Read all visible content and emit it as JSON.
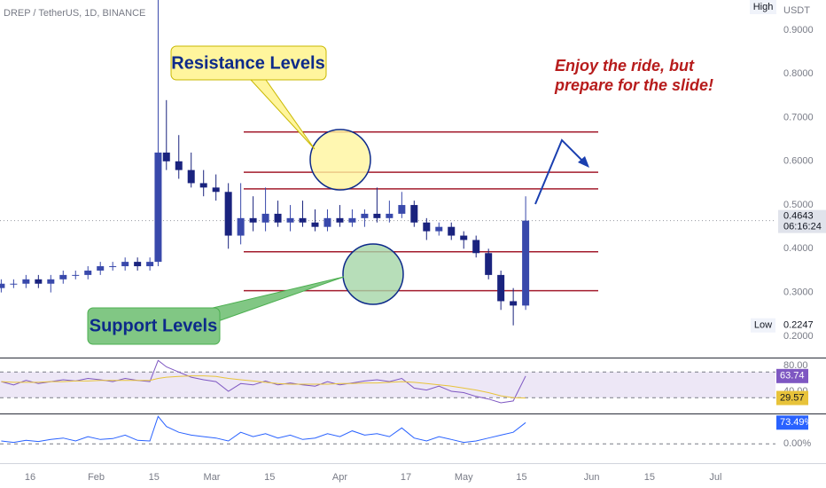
{
  "chart_data": {
    "type": "candlestick",
    "title": "DREP / TetherUS, 1D, BINANCE",
    "unit": "USDT",
    "high_label": "High",
    "low_label": "Low",
    "countdown": "06:16:24",
    "x": [
      9,
      12,
      15,
      18,
      21,
      24,
      27,
      30,
      33,
      36,
      39,
      42,
      45,
      47,
      49,
      52,
      55,
      58,
      61,
      64,
      67,
      70,
      73,
      76,
      79,
      82,
      85,
      88,
      91,
      94,
      97,
      100,
      103,
      106,
      109,
      112,
      115,
      118,
      121,
      124,
      127,
      130,
      133,
      136
    ],
    "open": [
      0.31,
      0.32,
      0.32,
      0.33,
      0.32,
      0.33,
      0.34,
      0.34,
      0.35,
      0.36,
      0.36,
      0.37,
      0.36,
      0.37,
      0.62,
      0.6,
      0.58,
      0.55,
      0.54,
      0.53,
      0.43,
      0.47,
      0.46,
      0.48,
      0.46,
      0.47,
      0.46,
      0.45,
      0.47,
      0.46,
      0.47,
      0.48,
      0.47,
      0.48,
      0.5,
      0.46,
      0.44,
      0.45,
      0.43,
      0.42,
      0.39,
      0.34,
      0.28,
      0.27
    ],
    "high": [
      0.33,
      0.33,
      0.34,
      0.34,
      0.34,
      0.35,
      0.35,
      0.36,
      0.37,
      0.37,
      0.38,
      0.38,
      0.38,
      0.97,
      0.74,
      0.66,
      0.62,
      0.58,
      0.57,
      0.55,
      0.55,
      0.52,
      0.54,
      0.51,
      0.5,
      0.51,
      0.49,
      0.49,
      0.5,
      0.49,
      0.49,
      0.54,
      0.51,
      0.53,
      0.51,
      0.47,
      0.46,
      0.46,
      0.44,
      0.43,
      0.4,
      0.35,
      0.31,
      0.52
    ],
    "low": [
      0.3,
      0.31,
      0.31,
      0.31,
      0.3,
      0.32,
      0.33,
      0.33,
      0.34,
      0.35,
      0.35,
      0.35,
      0.35,
      0.36,
      0.58,
      0.56,
      0.54,
      0.52,
      0.51,
      0.4,
      0.41,
      0.44,
      0.44,
      0.45,
      0.44,
      0.45,
      0.44,
      0.44,
      0.45,
      0.45,
      0.45,
      0.46,
      0.46,
      0.47,
      0.45,
      0.42,
      0.43,
      0.42,
      0.4,
      0.38,
      0.33,
      0.26,
      0.2247,
      0.26
    ],
    "close": [
      0.32,
      0.32,
      0.33,
      0.32,
      0.33,
      0.34,
      0.34,
      0.35,
      0.36,
      0.36,
      0.37,
      0.36,
      0.37,
      0.62,
      0.6,
      0.58,
      0.55,
      0.54,
      0.53,
      0.43,
      0.47,
      0.46,
      0.48,
      0.46,
      0.47,
      0.46,
      0.45,
      0.47,
      0.46,
      0.47,
      0.48,
      0.47,
      0.48,
      0.5,
      0.46,
      0.44,
      0.45,
      0.43,
      0.42,
      0.39,
      0.34,
      0.28,
      0.27,
      0.4643
    ],
    "up_color": "#3949ab",
    "down_color": "#1a237e",
    "xlim": [
      8.7,
      196.5
    ],
    "xticks": [
      {
        "value": 16,
        "label": "16"
      },
      {
        "value": 32,
        "label": "Feb"
      },
      {
        "value": 46,
        "label": "15"
      },
      {
        "value": 60,
        "label": "Mar"
      },
      {
        "value": 74,
        "label": "15"
      },
      {
        "value": 91,
        "label": "Apr"
      },
      {
        "value": 107,
        "label": "17"
      },
      {
        "value": 121,
        "label": "May"
      },
      {
        "value": 135,
        "label": "15"
      },
      {
        "value": 152,
        "label": "Jun"
      },
      {
        "value": 166,
        "label": "15"
      },
      {
        "value": 182,
        "label": "Jul"
      }
    ],
    "ylim": [
      0.151,
      0.969
    ],
    "yticks": [
      {
        "value": 0.2,
        "label": "0.2000"
      },
      {
        "value": 0.3,
        "label": "0.3000"
      },
      {
        "value": 0.4,
        "label": "0.4000"
      },
      {
        "value": 0.5,
        "label": "0.5000"
      },
      {
        "value": 0.6,
        "label": "0.6000"
      },
      {
        "value": 0.7,
        "label": "0.7000"
      },
      {
        "value": 0.8,
        "label": "0.8000"
      },
      {
        "value": 0.9,
        "label": "0.9000"
      }
    ],
    "grid": false,
    "levels": [
      0.667,
      0.575,
      0.537,
      0.393,
      0.304
    ],
    "level_color": "#a31b2c",
    "annotations": {
      "resistance": "Resistance Levels",
      "support": "Support Levels",
      "note": [
        "Enjoy the ride, but",
        "prepare for the slide!"
      ]
    },
    "panes": [
      {
        "type": "line",
        "series": [
          {
            "color": "#7e57c2",
            "tag_text": "#ffffff",
            "values": [
              55,
              50,
              57,
              52,
              55,
              58,
              56,
              60,
              58,
              55,
              60,
              57,
              55,
              88,
              78,
              70,
              62,
              58,
              55,
              40,
              52,
              50,
              56,
              50,
              53,
              50,
              48,
              55,
              50,
              53,
              56,
              58,
              55,
              60,
              45,
              42,
              48,
              40,
              38,
              32,
              28,
              22,
              25,
              63.74
            ]
          },
          {
            "color": "#e8c33a",
            "tag_text": "#131722",
            "values": [
              55,
              54,
              54,
              54,
              55,
              55,
              56,
              56,
              57,
              57,
              57,
              57,
              57,
              60,
              62,
              63,
              64,
              64,
              63,
              60,
              58,
              56,
              54,
              52,
              51,
              51,
              51,
              51,
              52,
              52,
              53,
              53,
              54,
              55,
              54,
              52,
              50,
              48,
              45,
              42,
              38,
              33,
              30,
              29.57
            ]
          }
        ],
        "ylim": [
          5.5,
          89.7
        ],
        "yticks": [
          {
            "value": 80,
            "label": "80.00"
          },
          {
            "value": 40,
            "label": "40.00"
          }
        ],
        "bands": [
          30,
          70
        ],
        "band_color": "#ede7f6"
      },
      {
        "type": "line",
        "series": [
          {
            "color": "#2962ff",
            "tag_text": "#ffffff",
            "values": [
              10,
              5,
              12,
              8,
              15,
              20,
              10,
              25,
              15,
              18,
              30,
              12,
              10,
              95,
              60,
              40,
              30,
              25,
              20,
              10,
              40,
              25,
              35,
              20,
              30,
              15,
              20,
              35,
              25,
              45,
              30,
              35,
              25,
              55,
              20,
              10,
              25,
              15,
              5,
              10,
              20,
              30,
              40,
              73.49
            ],
            "value_labels": [
              null,
              null,
              null,
              null,
              null,
              null,
              null,
              null,
              null,
              null,
              null,
              null,
              null,
              null,
              null,
              null,
              null,
              null,
              null,
              null,
              null,
              null,
              null,
              null,
              null,
              null,
              null,
              null,
              null,
              null,
              null,
              null,
              null,
              null,
              null,
              null,
              null,
              null,
              null,
              null,
              null,
              null,
              null,
              "73.49%"
            ]
          }
        ],
        "ylim": [
          -67,
          99
        ],
        "yticks": [
          {
            "value": 0,
            "label": "0.00%"
          }
        ],
        "bands": [
          0
        ],
        "band_color": null
      }
    ]
  }
}
